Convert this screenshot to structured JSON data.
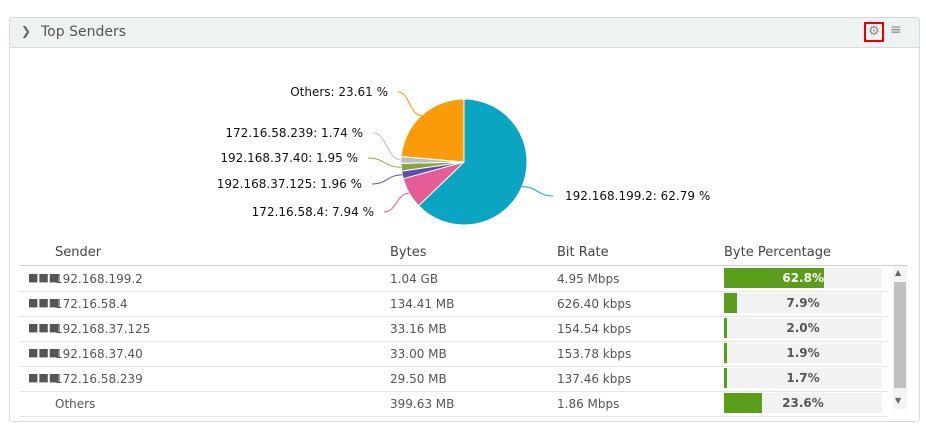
{
  "panel": {
    "title": "Top Senders",
    "collapse_icon": "chevron-down-icon",
    "settings_icon": "gear-icon",
    "menu_icon": "menu-icon"
  },
  "table": {
    "headers": [
      "Sender",
      "Bytes",
      "Bit Rate",
      "Byte Percentage"
    ],
    "rows": [
      {
        "sender": "192.168.199.2",
        "bytes": "1.04 GB",
        "bitrate": "4.95 Mbps",
        "pct_label": "62.8%",
        "pct": 62.8,
        "menu": true
      },
      {
        "sender": "172.16.58.4",
        "bytes": "134.41 MB",
        "bitrate": "626.40 kbps",
        "pct_label": "7.9%",
        "pct": 7.9,
        "menu": true
      },
      {
        "sender": "192.168.37.125",
        "bytes": "33.16 MB",
        "bitrate": "154.54 kbps",
        "pct_label": "2.0%",
        "pct": 2.0,
        "menu": true
      },
      {
        "sender": "192.168.37.40",
        "bytes": "33.00 MB",
        "bitrate": "153.78 kbps",
        "pct_label": "1.9%",
        "pct": 1.9,
        "menu": true
      },
      {
        "sender": "172.16.58.239",
        "bytes": "29.50 MB",
        "bitrate": "137.46 kbps",
        "pct_label": "1.7%",
        "pct": 1.7,
        "menu": true
      },
      {
        "sender": "Others",
        "bytes": "399.63 MB",
        "bitrate": "1.86 Mbps",
        "pct_label": "23.6%",
        "pct": 23.6,
        "menu": false
      }
    ],
    "bar_color": "#5a9e1b"
  },
  "chart_data": {
    "type": "pie",
    "slices": [
      {
        "label": "192.168.199.2: 62.79 %",
        "name": "192.168.199.2",
        "value": 62.79,
        "color": "#0aa5c0"
      },
      {
        "label": "172.16.58.4: 7.94 %",
        "name": "172.16.58.4",
        "value": 7.94,
        "color": "#e65c96"
      },
      {
        "label": "192.168.37.125: 1.96 %",
        "name": "192.168.37.125",
        "value": 1.96,
        "color": "#5c4db0"
      },
      {
        "label": "192.168.37.40: 1.95 %",
        "name": "192.168.37.40",
        "value": 1.95,
        "color": "#88a83a"
      },
      {
        "label": "172.16.58.239: 1.74 %",
        "name": "172.16.58.239",
        "value": 1.74,
        "color": "#b8c0c2"
      },
      {
        "label": "Others: 23.61 %",
        "name": "Others",
        "value": 23.61,
        "color": "#fa9c0a"
      }
    ]
  }
}
